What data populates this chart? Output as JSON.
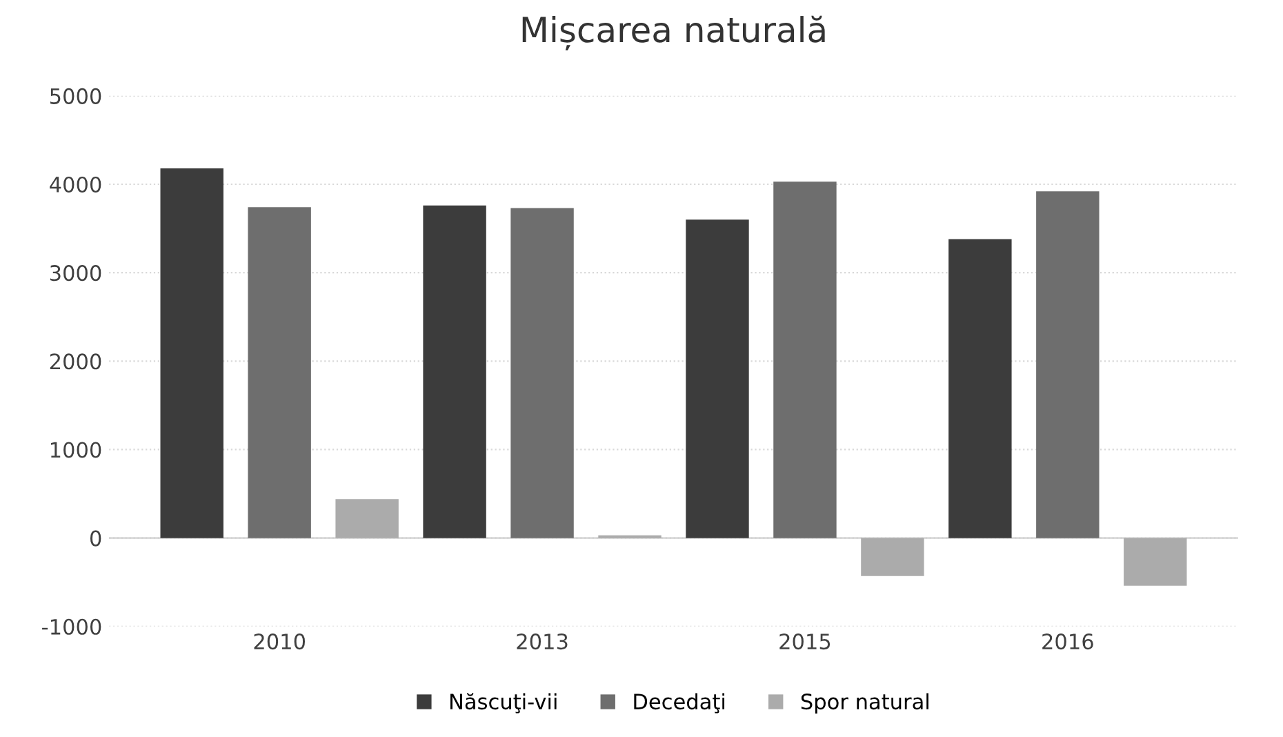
{
  "chart_data": {
    "type": "bar",
    "title": "Mișcarea naturală",
    "categories": [
      "2010",
      "2013",
      "2015",
      "2016"
    ],
    "series": [
      {
        "name": "Născuţi-vii",
        "color": "#3c3c3c",
        "values": [
          4180,
          3760,
          3600,
          3380
        ]
      },
      {
        "name": "Decedaţi",
        "color": "#6e6e6e",
        "values": [
          3740,
          3730,
          4030,
          3920
        ]
      },
      {
        "name": "Spor natural",
        "color": "#ababab",
        "values": [
          440,
          30,
          -430,
          -540
        ]
      }
    ],
    "ylim": [
      -1000,
      5000
    ],
    "yticks": [
      -1000,
      0,
      1000,
      2000,
      3000,
      4000,
      5000
    ],
    "grid": "y",
    "legend": "bottom"
  }
}
